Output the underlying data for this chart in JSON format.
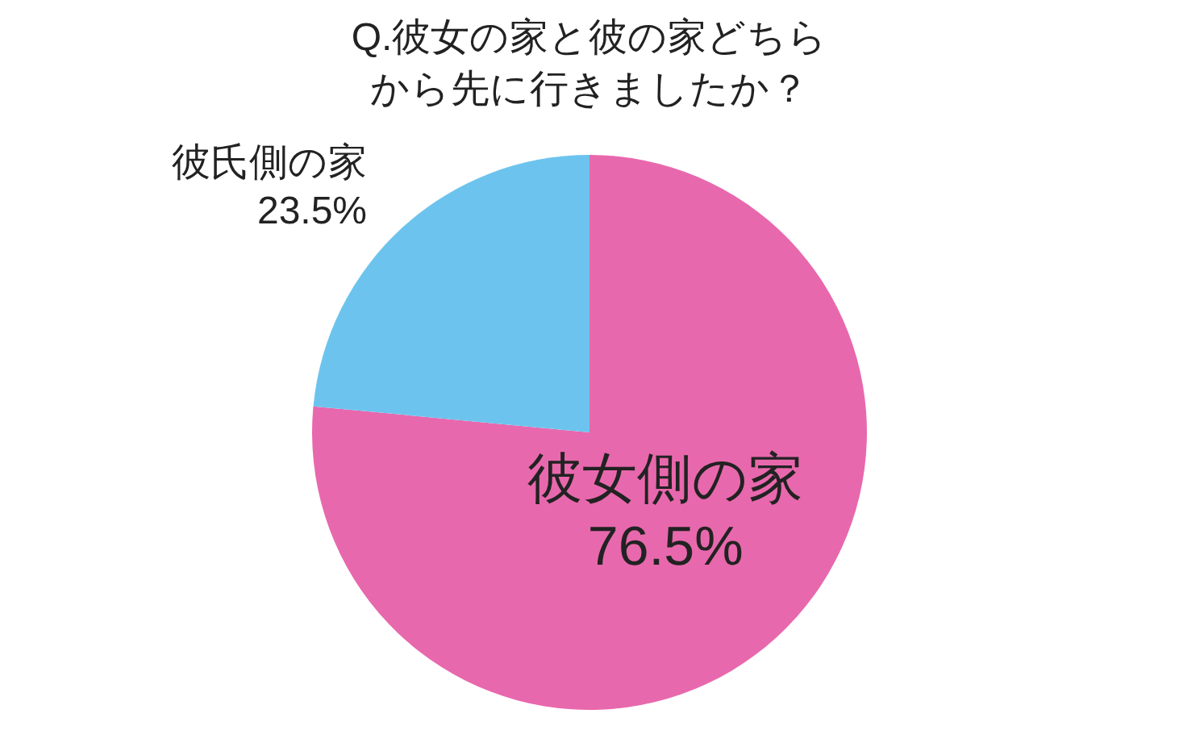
{
  "chart_data": {
    "type": "pie",
    "title": "Q.彼女の家と彼の家どちらから先に行きましたか？",
    "categories": [
      "彼女側の家",
      "彼氏側の家"
    ],
    "values": [
      76.5,
      23.5
    ],
    "colors": [
      "#e868ad",
      "#6cc4ee"
    ],
    "value_labels": [
      "76.5%",
      "23.5%"
    ]
  }
}
